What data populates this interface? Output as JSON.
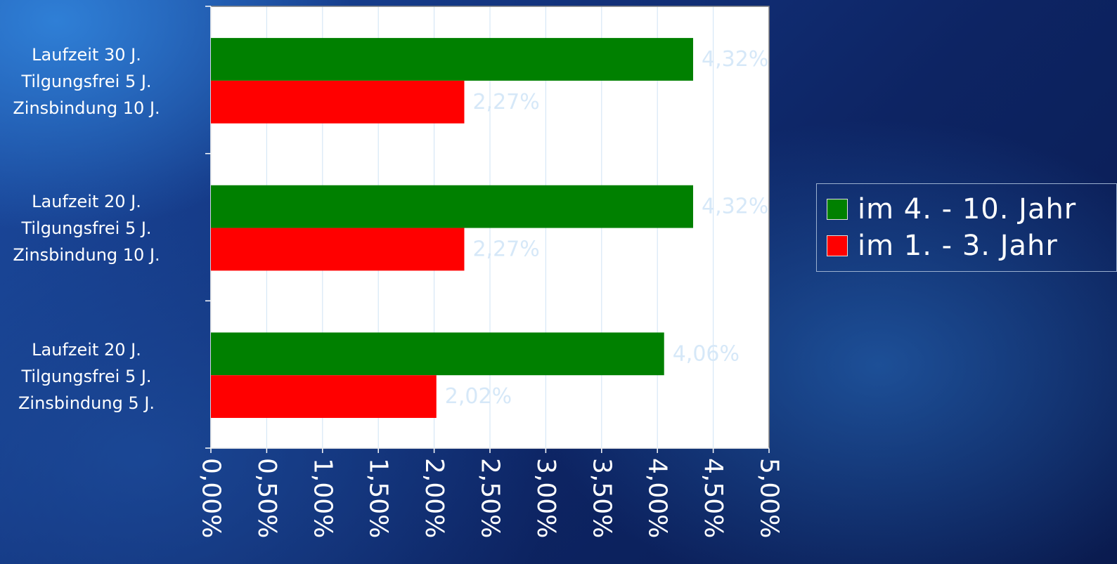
{
  "chart_data": {
    "type": "bar",
    "orientation": "horizontal",
    "categories": [
      [
        "Laufzeit 30 J.",
        "Tilgungsfrei 5 J.",
        "Zinsbindung 10 J."
      ],
      [
        "Laufzeit 20 J.",
        "Tilgungsfrei 5 J.",
        "Zinsbindung 10 J."
      ],
      [
        "Laufzeit 20 J.",
        "Tilgungsfrei 5 J.",
        "Zinsbindung 5 J."
      ]
    ],
    "series": [
      {
        "name": "im 4. - 10. Jahr",
        "color": "#008000",
        "values": [
          4.32,
          4.32,
          4.06
        ],
        "labels": [
          "4,32%",
          "4,32%",
          "4,06%"
        ]
      },
      {
        "name": "im 1. - 3. Jahr",
        "color": "#ff0000",
        "values": [
          2.27,
          2.27,
          2.02
        ],
        "labels": [
          "2,27%",
          "2,27%",
          "2,02%"
        ]
      }
    ],
    "xlim": [
      0,
      5
    ],
    "xticks": [
      "0,00%",
      "0,50%",
      "1,00%",
      "1,50%",
      "2,00%",
      "2,50%",
      "3,00%",
      "3,50%",
      "4,00%",
      "4,50%",
      "5,00%"
    ],
    "grid": true,
    "legend_position": "right"
  },
  "legend": {
    "item1": "im 4. - 10. Jahr",
    "item2": "im 1. - 3. Jahr"
  }
}
